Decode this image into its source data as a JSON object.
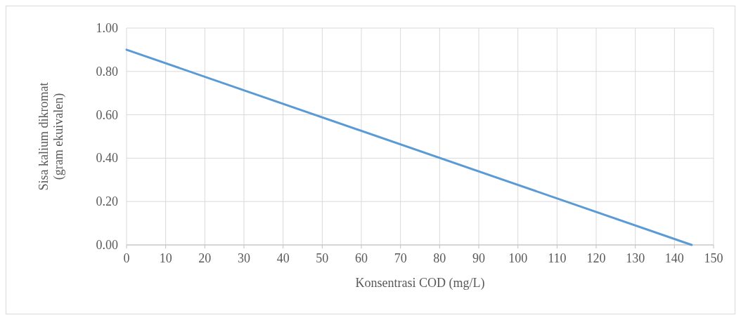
{
  "chart_data": {
    "type": "line",
    "xlabel": "Konsentrasi COD (mg/L)",
    "ylabel": "Sisa kalium dikromat\n(gram ekuivalen)",
    "x": [
      0,
      144.4
    ],
    "series": [
      {
        "color": "#5b9bd5",
        "values": [
          0.9,
          0
        ]
      }
    ],
    "xlim": [
      0,
      150
    ],
    "xticks": [
      0,
      10,
      20,
      30,
      40,
      50,
      60,
      70,
      80,
      90,
      100,
      110,
      120,
      130,
      140,
      150
    ],
    "ylim": [
      0,
      1
    ],
    "yticks": [
      {
        "value": 0,
        "label": "0.00"
      },
      {
        "value": 0.2,
        "label": "0.20"
      },
      {
        "value": 0.4,
        "label": "0.40"
      },
      {
        "value": 0.6,
        "label": "0.60"
      },
      {
        "value": 0.8,
        "label": "0.80"
      },
      {
        "value": 1,
        "label": "1.00"
      }
    ],
    "grid": true,
    "marker": "none",
    "line_style": "solid"
  }
}
